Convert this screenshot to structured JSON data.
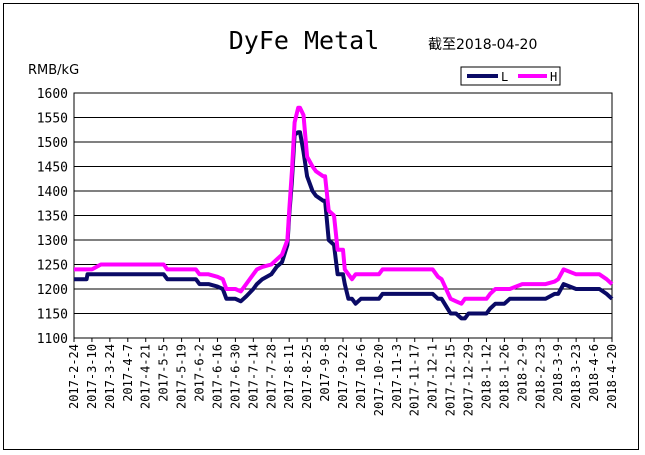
{
  "chart_data": {
    "type": "line",
    "title": "DyFe Metal",
    "subtitle": "截至2018-04-20",
    "ylabel": "RMB/kG",
    "ylim": [
      1100,
      1600
    ],
    "yticks": [
      "1600",
      "1550",
      "1500",
      "1450",
      "1400",
      "1350",
      "1300",
      "1250",
      "1200",
      "1150",
      "1100"
    ],
    "grid": true,
    "legend_position": "top-right",
    "categories": [
      "2017-2-24",
      "2017-3-10",
      "2017-3-24",
      "2017-4-7",
      "2017-4-21",
      "2017-5-5",
      "2017-5-19",
      "2017-6-2",
      "2017-6-16",
      "2017-6-30",
      "2017-7-14",
      "2017-7-28",
      "2017-8-11",
      "2017-8-25",
      "2017-9-8",
      "2017-9-22",
      "2017-10-6",
      "2017-10-20",
      "2017-11-3",
      "2017-11-17",
      "2017-12-1",
      "2017-12-15",
      "2017-12-29",
      "2018-1-12",
      "2018-1-26",
      "2018-2-9",
      "2018-2-23",
      "2018-3-9",
      "2018-3-23",
      "2018-4-6",
      "2018-4-20"
    ],
    "series": [
      {
        "name": "L",
        "color": "#0a0a66",
        "x": [
          0,
          0.7,
          0.75,
          1.5,
          2,
          3,
          4,
          5,
          5.2,
          6,
          6.8,
          7,
          7.5,
          8,
          8.3,
          8.5,
          9,
          9.3,
          9.6,
          10,
          10.2,
          10.5,
          11,
          11.3,
          11.6,
          11.9,
          12,
          12.15,
          12.3,
          12.5,
          12.6,
          12.8,
          13,
          13.3,
          13.5,
          13.9,
          14,
          14.2,
          14.5,
          14.7,
          15,
          15.1,
          15.3,
          15.5,
          15.7,
          16,
          16.5,
          17,
          17.2,
          18,
          19,
          20,
          20.3,
          20.5,
          21,
          21.3,
          21.6,
          21.8,
          22,
          22.5,
          23,
          23.2,
          23.5,
          24,
          24.3,
          25,
          26,
          26.3,
          26.8,
          27,
          27.3,
          28,
          29,
          29.3,
          29.7,
          30
        ],
        "values": [
          1220,
          1220,
          1230,
          1230,
          1230,
          1230,
          1230,
          1230,
          1220,
          1220,
          1220,
          1210,
          1210,
          1205,
          1200,
          1180,
          1180,
          1175,
          1185,
          1200,
          1210,
          1220,
          1230,
          1245,
          1255,
          1290,
          1350,
          1420,
          1515,
          1520,
          1520,
          1480,
          1430,
          1400,
          1390,
          1380,
          1380,
          1300,
          1290,
          1230,
          1230,
          1210,
          1180,
          1180,
          1170,
          1180,
          1180,
          1180,
          1190,
          1190,
          1190,
          1190,
          1180,
          1180,
          1150,
          1150,
          1140,
          1140,
          1150,
          1150,
          1150,
          1160,
          1170,
          1170,
          1180,
          1180,
          1180,
          1180,
          1190,
          1190,
          1210,
          1200,
          1200,
          1200,
          1190,
          1180
        ]
      },
      {
        "name": "H",
        "color": "#ff00ff",
        "x": [
          0,
          1,
          1.5,
          2,
          3,
          4,
          5,
          5.2,
          6,
          6.8,
          7,
          7.5,
          8,
          8.3,
          8.5,
          9,
          9.3,
          9.6,
          10,
          10.2,
          10.5,
          11,
          11.3,
          11.6,
          11.9,
          12,
          12.15,
          12.3,
          12.5,
          12.6,
          12.8,
          13,
          13.3,
          13.5,
          13.9,
          14,
          14.2,
          14.5,
          14.7,
          15,
          15.1,
          15.3,
          15.5,
          15.7,
          16,
          16.5,
          17,
          17.2,
          18,
          19,
          20,
          20.3,
          20.5,
          21,
          21.3,
          21.6,
          21.8,
          22,
          22.5,
          23,
          23.2,
          23.5,
          24,
          24.3,
          25,
          26,
          26.3,
          26.8,
          27,
          27.3,
          28,
          29,
          29.3,
          29.7,
          30
        ],
        "values": [
          1240,
          1240,
          1250,
          1250,
          1250,
          1250,
          1250,
          1240,
          1240,
          1240,
          1230,
          1230,
          1225,
          1220,
          1200,
          1200,
          1195,
          1210,
          1230,
          1240,
          1245,
          1250,
          1260,
          1270,
          1300,
          1360,
          1440,
          1540,
          1570,
          1570,
          1555,
          1470,
          1450,
          1440,
          1430,
          1430,
          1360,
          1350,
          1280,
          1280,
          1240,
          1230,
          1220,
          1230,
          1230,
          1230,
          1230,
          1240,
          1240,
          1240,
          1240,
          1225,
          1220,
          1180,
          1175,
          1170,
          1180,
          1180,
          1180,
          1180,
          1190,
          1200,
          1200,
          1200,
          1210,
          1210,
          1210,
          1215,
          1220,
          1240,
          1230,
          1230,
          1230,
          1220,
          1210
        ]
      }
    ]
  }
}
